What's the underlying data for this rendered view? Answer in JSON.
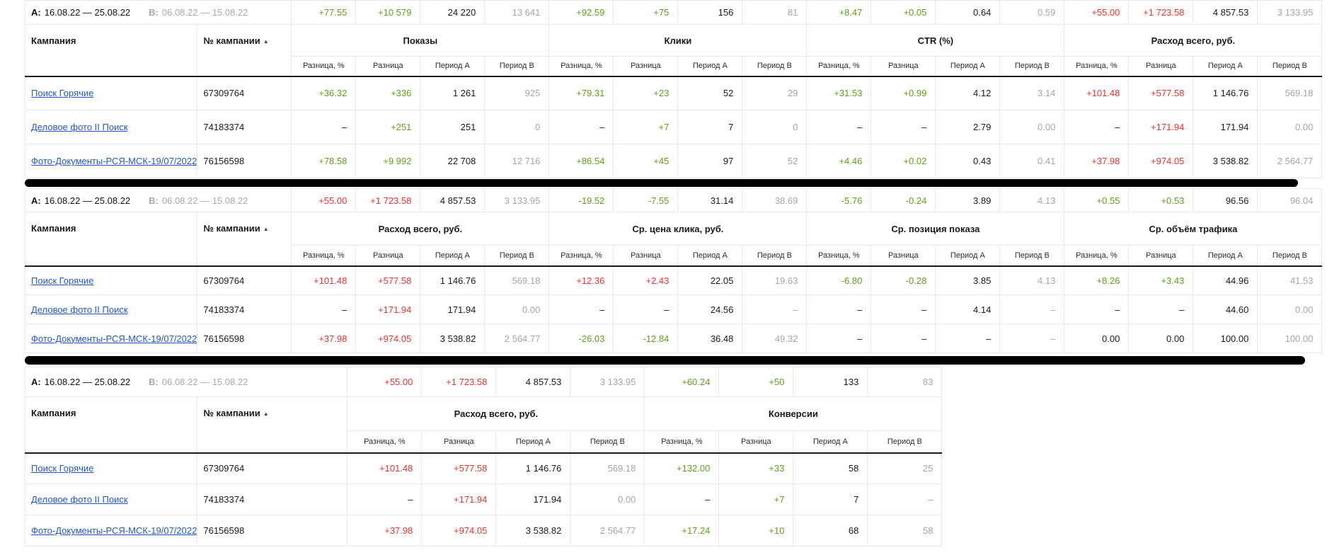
{
  "colors": {
    "green": "#61a01b",
    "red": "#f0332c",
    "black": "#1a1a1a",
    "gray": "#a6a6a6",
    "link": "#2158c8"
  },
  "periods": {
    "a_label": "A:",
    "a_range": "16.08.22 — 25.08.22",
    "b_label": "B:",
    "b_range": "06.08.22 — 15.08.22"
  },
  "header_labels": {
    "campaign": "Кампания",
    "campaign_number": "№ кампании",
    "sort_icon": "▲",
    "subcolumns": [
      "Разница, %",
      "Разница",
      "Период A",
      "Период B"
    ]
  },
  "campaigns": [
    {
      "name": "Поиск Горячие",
      "id": "67309764"
    },
    {
      "name": "Деловое фото II Поиск",
      "id": "74183374"
    },
    {
      "name": "Фото-Документы-РСЯ-МСК-19/07/2022",
      "id": "76156598"
    }
  ],
  "tables": [
    {
      "groups": [
        "Показы",
        "Клики",
        "CTR (%)",
        "Расход всего, руб."
      ],
      "summary": [
        [
          "+77.55",
          "green"
        ],
        [
          "+10 579",
          "green"
        ],
        [
          "24 220",
          "black"
        ],
        [
          "13 641",
          "gray"
        ],
        [
          "+92.59",
          "green"
        ],
        [
          "+75",
          "green"
        ],
        [
          "156",
          "black"
        ],
        [
          "81",
          "gray"
        ],
        [
          "+8.47",
          "green"
        ],
        [
          "+0.05",
          "green"
        ],
        [
          "0.64",
          "black"
        ],
        [
          "0.59",
          "gray"
        ],
        [
          "+55.00",
          "red"
        ],
        [
          "+1 723.58",
          "red"
        ],
        [
          "4 857.53",
          "black"
        ],
        [
          "3 133.95",
          "gray"
        ]
      ],
      "rows": [
        {
          "campaign": 0,
          "cells": [
            [
              "+36.32",
              "green"
            ],
            [
              "+336",
              "green"
            ],
            [
              "1 261",
              "black"
            ],
            [
              "925",
              "gray"
            ],
            [
              "+79.31",
              "green"
            ],
            [
              "+23",
              "green"
            ],
            [
              "52",
              "black"
            ],
            [
              "29",
              "gray"
            ],
            [
              "+31.53",
              "green"
            ],
            [
              "+0.99",
              "green"
            ],
            [
              "4.12",
              "black"
            ],
            [
              "3.14",
              "gray"
            ],
            [
              "+101.48",
              "red"
            ],
            [
              "+577.58",
              "red"
            ],
            [
              "1 146.76",
              "black"
            ],
            [
              "569.18",
              "gray"
            ]
          ]
        },
        {
          "campaign": 1,
          "cells": [
            [
              "–",
              "black"
            ],
            [
              "+251",
              "green"
            ],
            [
              "251",
              "black"
            ],
            [
              "0",
              "gray"
            ],
            [
              "–",
              "black"
            ],
            [
              "+7",
              "green"
            ],
            [
              "7",
              "black"
            ],
            [
              "0",
              "gray"
            ],
            [
              "–",
              "black"
            ],
            [
              "–",
              "black"
            ],
            [
              "2.79",
              "black"
            ],
            [
              "0.00",
              "gray"
            ],
            [
              "–",
              "black"
            ],
            [
              "+171.94",
              "red"
            ],
            [
              "171.94",
              "black"
            ],
            [
              "0.00",
              "gray"
            ]
          ]
        },
        {
          "campaign": 2,
          "cells": [
            [
              "+78.58",
              "green"
            ],
            [
              "+9 992",
              "green"
            ],
            [
              "22 708",
              "black"
            ],
            [
              "12 716",
              "gray"
            ],
            [
              "+86.54",
              "green"
            ],
            [
              "+45",
              "green"
            ],
            [
              "97",
              "black"
            ],
            [
              "52",
              "gray"
            ],
            [
              "+4.46",
              "green"
            ],
            [
              "+0.02",
              "green"
            ],
            [
              "0.43",
              "black"
            ],
            [
              "0.41",
              "gray"
            ],
            [
              "+37.98",
              "red"
            ],
            [
              "+974.05",
              "red"
            ],
            [
              "3 538.82",
              "black"
            ],
            [
              "2 564.77",
              "gray"
            ]
          ]
        }
      ]
    },
    {
      "groups": [
        "Расход всего, руб.",
        "Ср. цена клика, руб.",
        "Ср. позиция показа",
        "Ср. объём трафика"
      ],
      "summary": [
        [
          "+55.00",
          "red"
        ],
        [
          "+1 723.58",
          "red"
        ],
        [
          "4 857.53",
          "black"
        ],
        [
          "3 133.95",
          "gray"
        ],
        [
          "-19.52",
          "green"
        ],
        [
          "-7.55",
          "green"
        ],
        [
          "31.14",
          "black"
        ],
        [
          "38.69",
          "gray"
        ],
        [
          "-5.76",
          "green"
        ],
        [
          "-0.24",
          "green"
        ],
        [
          "3.89",
          "black"
        ],
        [
          "4.13",
          "gray"
        ],
        [
          "+0.55",
          "green"
        ],
        [
          "+0.53",
          "green"
        ],
        [
          "96.56",
          "black"
        ],
        [
          "96.04",
          "gray"
        ]
      ],
      "rows": [
        {
          "campaign": 0,
          "cells": [
            [
              "+101.48",
              "red"
            ],
            [
              "+577.58",
              "red"
            ],
            [
              "1 146.76",
              "black"
            ],
            [
              "569.18",
              "gray"
            ],
            [
              "+12.36",
              "red"
            ],
            [
              "+2.43",
              "red"
            ],
            [
              "22.05",
              "black"
            ],
            [
              "19.63",
              "gray"
            ],
            [
              "-6.80",
              "green"
            ],
            [
              "-0.28",
              "green"
            ],
            [
              "3.85",
              "black"
            ],
            [
              "4.13",
              "gray"
            ],
            [
              "+8.26",
              "green"
            ],
            [
              "+3.43",
              "green"
            ],
            [
              "44.96",
              "black"
            ],
            [
              "41.53",
              "gray"
            ]
          ]
        },
        {
          "campaign": 1,
          "cells": [
            [
              "–",
              "black"
            ],
            [
              "+171.94",
              "red"
            ],
            [
              "171.94",
              "black"
            ],
            [
              "0.00",
              "gray"
            ],
            [
              "–",
              "black"
            ],
            [
              "–",
              "black"
            ],
            [
              "24.56",
              "black"
            ],
            [
              "–",
              "gray"
            ],
            [
              "–",
              "black"
            ],
            [
              "–",
              "black"
            ],
            [
              "4.14",
              "black"
            ],
            [
              "–",
              "gray"
            ],
            [
              "–",
              "black"
            ],
            [
              "–",
              "black"
            ],
            [
              "44.60",
              "black"
            ],
            [
              "0.00",
              "gray"
            ]
          ]
        },
        {
          "campaign": 2,
          "cells": [
            [
              "+37.98",
              "red"
            ],
            [
              "+974.05",
              "red"
            ],
            [
              "3 538.82",
              "black"
            ],
            [
              "2 564.77",
              "gray"
            ],
            [
              "-26.03",
              "green"
            ],
            [
              "-12.84",
              "green"
            ],
            [
              "36.48",
              "black"
            ],
            [
              "49.32",
              "gray"
            ],
            [
              "–",
              "black"
            ],
            [
              "–",
              "black"
            ],
            [
              "–",
              "black"
            ],
            [
              "–",
              "gray"
            ],
            [
              "0.00",
              "black"
            ],
            [
              "0.00",
              "black"
            ],
            [
              "100.00",
              "black"
            ],
            [
              "100.00",
              "gray"
            ]
          ]
        }
      ]
    },
    {
      "groups": [
        "Расход всего, руб.",
        "Конверсии"
      ],
      "summary": [
        [
          "+55.00",
          "red"
        ],
        [
          "+1 723.58",
          "red"
        ],
        [
          "4 857.53",
          "black"
        ],
        [
          "3 133.95",
          "gray"
        ],
        [
          "+60.24",
          "green"
        ],
        [
          "+50",
          "green"
        ],
        [
          "133",
          "black"
        ],
        [
          "83",
          "gray"
        ]
      ],
      "rows": [
        {
          "campaign": 0,
          "cells": [
            [
              "+101.48",
              "red"
            ],
            [
              "+577.58",
              "red"
            ],
            [
              "1 146.76",
              "black"
            ],
            [
              "569.18",
              "gray"
            ],
            [
              "+132.00",
              "green"
            ],
            [
              "+33",
              "green"
            ],
            [
              "58",
              "black"
            ],
            [
              "25",
              "gray"
            ]
          ]
        },
        {
          "campaign": 1,
          "cells": [
            [
              "–",
              "black"
            ],
            [
              "+171.94",
              "red"
            ],
            [
              "171.94",
              "black"
            ],
            [
              "0.00",
              "gray"
            ],
            [
              "–",
              "black"
            ],
            [
              "+7",
              "green"
            ],
            [
              "7",
              "black"
            ],
            [
              "–",
              "gray"
            ]
          ]
        },
        {
          "campaign": 2,
          "cells": [
            [
              "+37.98",
              "red"
            ],
            [
              "+974.05",
              "red"
            ],
            [
              "3 538.82",
              "black"
            ],
            [
              "2 564.77",
              "gray"
            ],
            [
              "+17.24",
              "green"
            ],
            [
              "+10",
              "green"
            ],
            [
              "68",
              "black"
            ],
            [
              "58",
              "gray"
            ]
          ]
        }
      ]
    }
  ]
}
